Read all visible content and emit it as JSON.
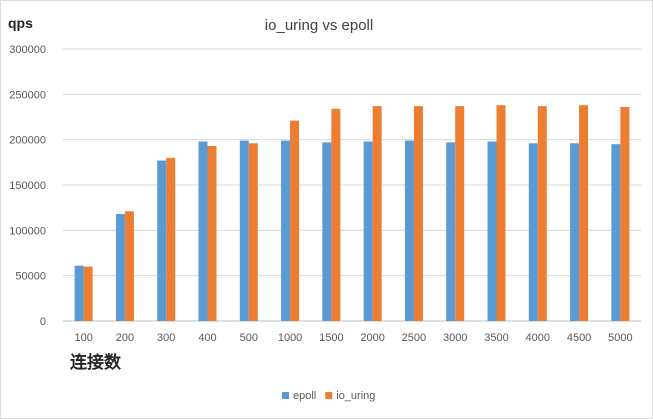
{
  "chart_data": {
    "type": "bar",
    "title": "io_uring vs epoll",
    "ylabel": "qps",
    "xlabel": "连接数",
    "categories": [
      "100",
      "200",
      "300",
      "400",
      "500",
      "1000",
      "1500",
      "2000",
      "2500",
      "3000",
      "3500",
      "4000",
      "4500",
      "5000"
    ],
    "series": [
      {
        "name": "epoll",
        "color": "#5b9bd5",
        "values": [
          61000,
          118000,
          177000,
          198000,
          199000,
          199000,
          197000,
          198000,
          199000,
          197000,
          198000,
          196000,
          196000,
          195000
        ]
      },
      {
        "name": "io_uring",
        "color": "#ed7d31",
        "values": [
          60000,
          121000,
          180000,
          193000,
          196000,
          221000,
          234000,
          237000,
          237000,
          237000,
          238000,
          237000,
          238000,
          236000
        ]
      }
    ],
    "ylim": [
      0,
      300000
    ],
    "yticks": [
      0,
      50000,
      100000,
      150000,
      200000,
      250000,
      300000
    ],
    "ytick_labels": [
      "0",
      "50000",
      "100000",
      "150000",
      "200000",
      "250000",
      "300000"
    ],
    "grid": true,
    "legend_position": "bottom"
  }
}
